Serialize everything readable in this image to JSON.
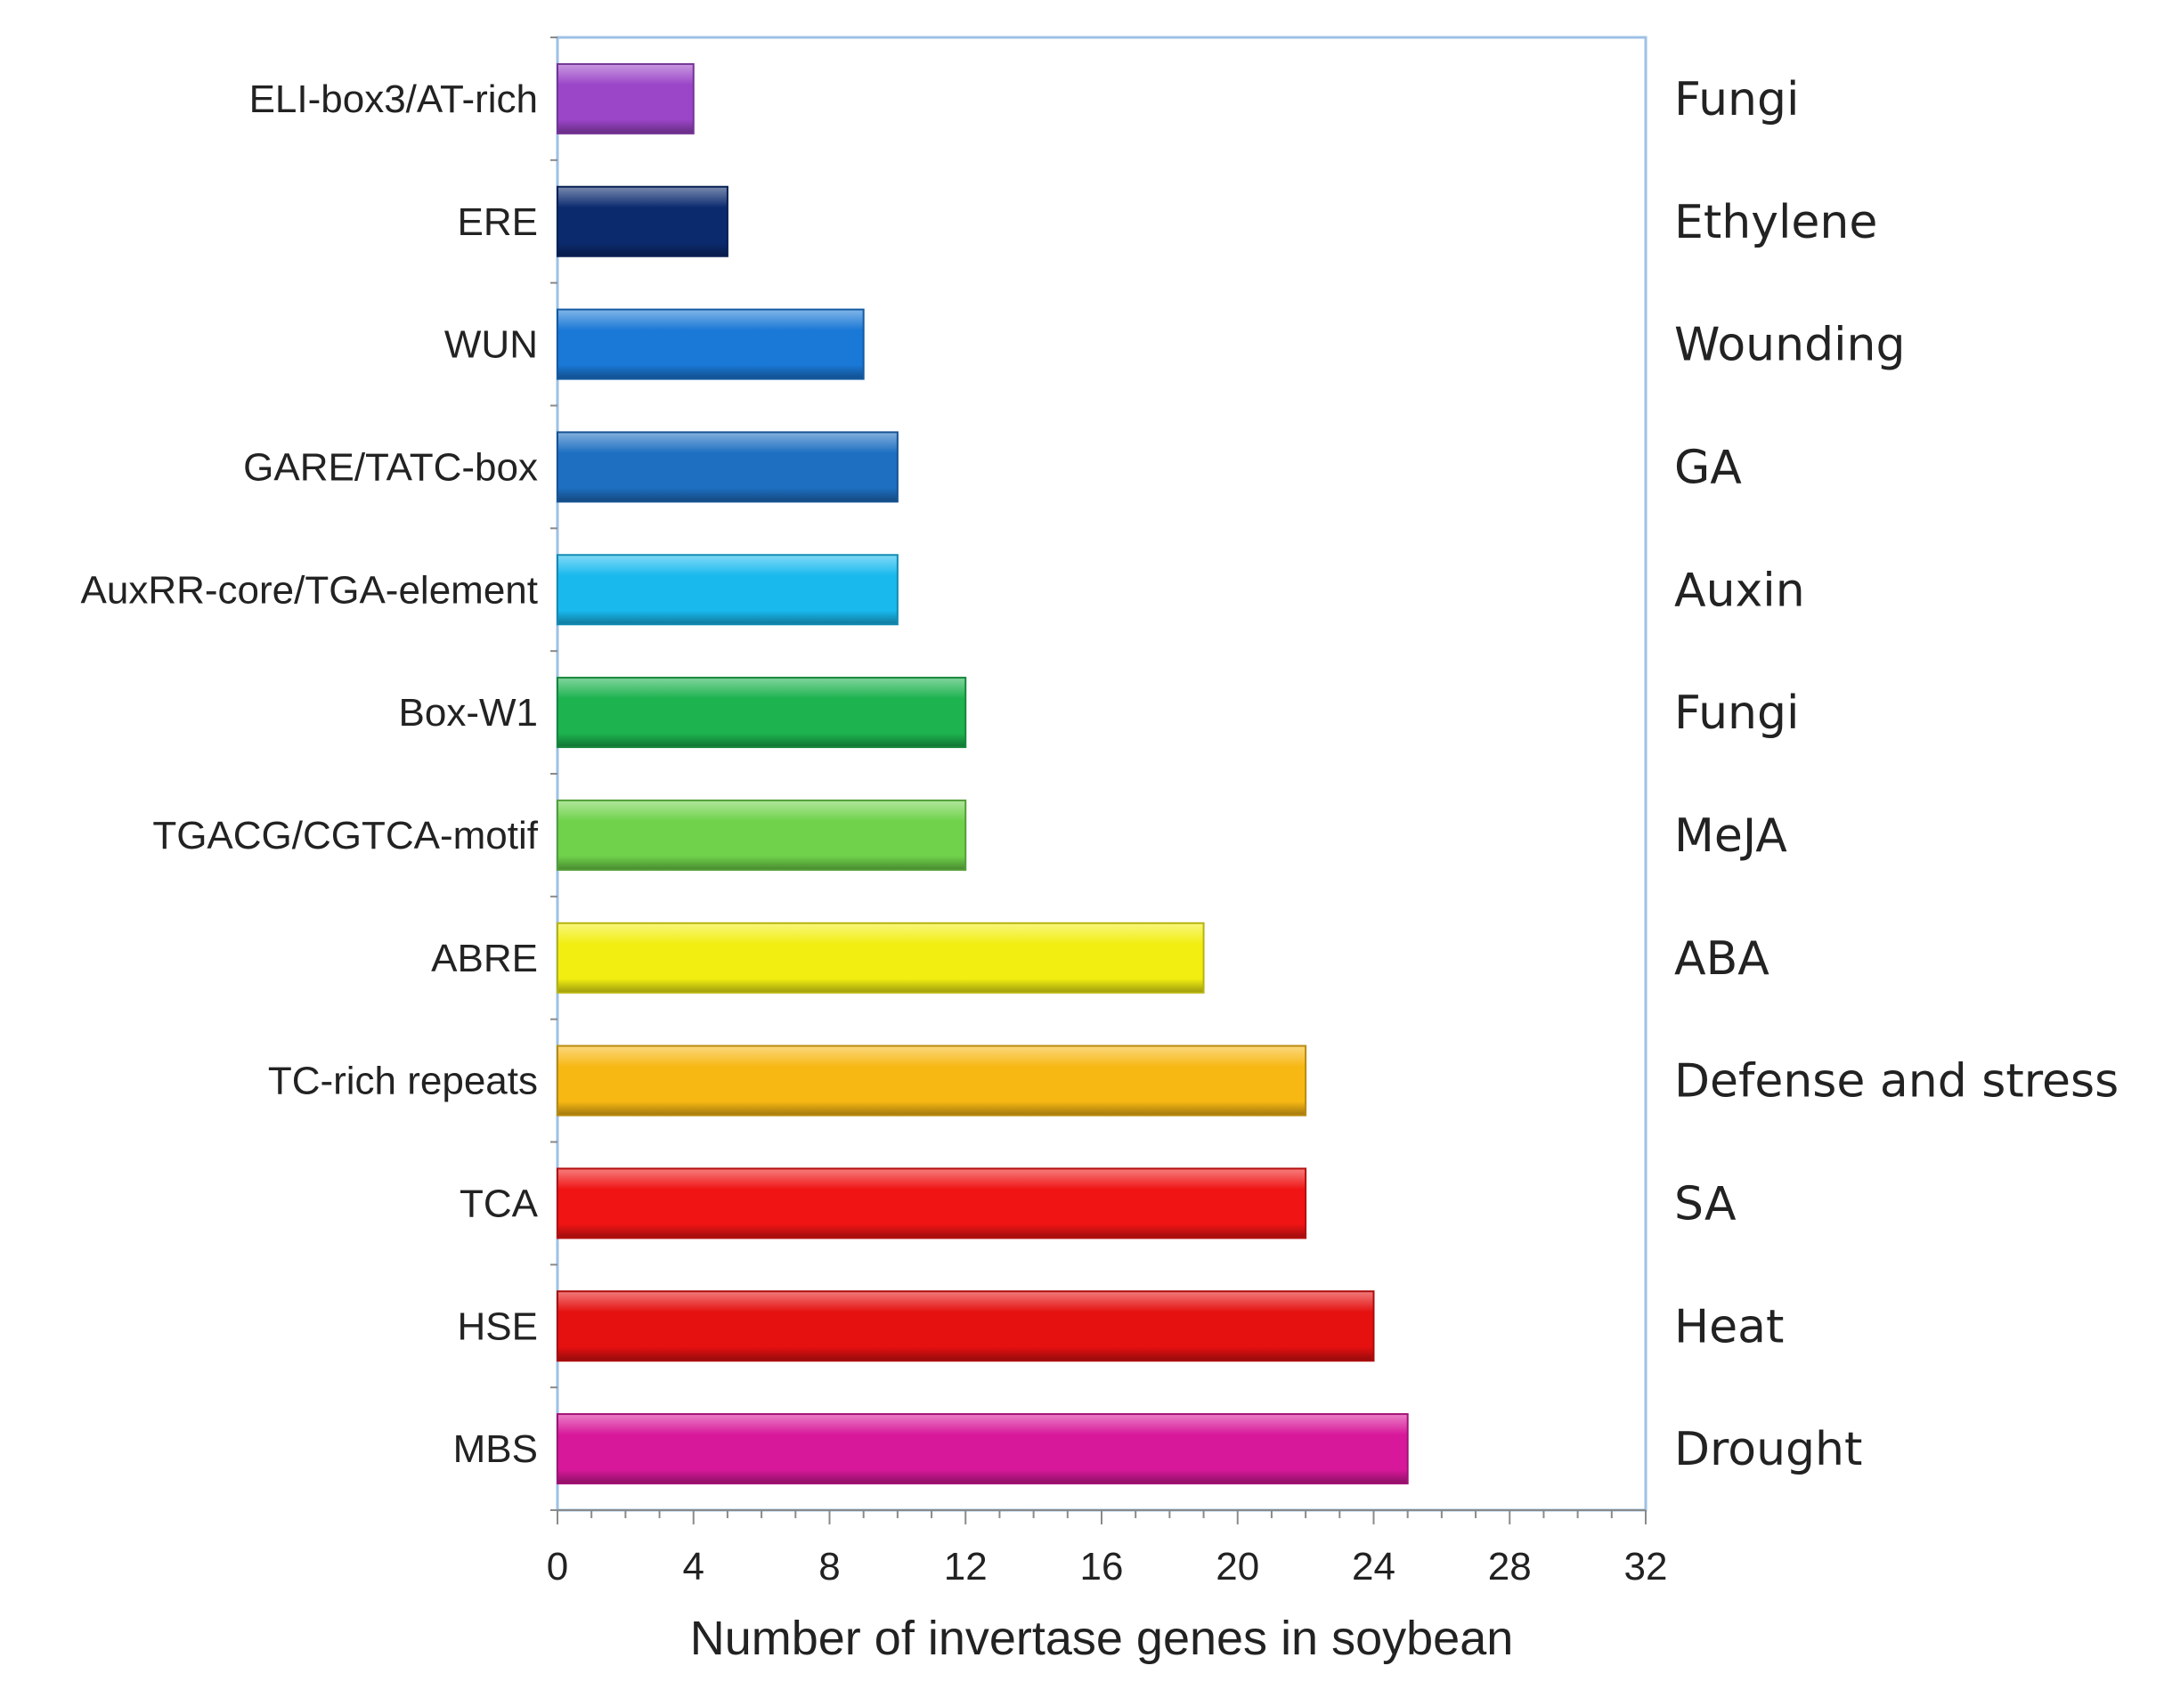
{
  "chart_data": {
    "type": "bar",
    "orientation": "horizontal",
    "title": "",
    "xlabel": "Number of invertase genes in soybean",
    "ylabel": "",
    "xlim": [
      0,
      32
    ],
    "xticks": [
      0,
      4,
      8,
      12,
      16,
      20,
      24,
      28,
      32
    ],
    "grid": false,
    "legend": "none",
    "categories": [
      "ELI-box3/AT-rich",
      "ERE",
      "WUN",
      "GARE/TATC-box",
      "AuxRR-core/TGA-element",
      "Box-W1",
      "TGACG/CGTCA-motif",
      "ABRE",
      "TC-rich repeats",
      "TCA",
      "HSE",
      "MBS"
    ],
    "values": [
      4,
      5,
      9,
      10,
      10,
      12,
      12,
      19,
      22,
      22,
      24,
      25
    ],
    "groups": [
      "Fungi",
      "Ethylene",
      "Wounding",
      "GA",
      "Auxin",
      "Fungi",
      "MeJA",
      "ABA",
      "Defense and stress",
      "SA",
      "Heat",
      "Drought"
    ],
    "colors": [
      "#9b45c8",
      "#0b2a6e",
      "#1a78d6",
      "#1e6fc2",
      "#19b9ee",
      "#1db34f",
      "#6fd24a",
      "#f2ee12",
      "#f7b814",
      "#f01414",
      "#e51010",
      "#d8189a"
    ],
    "axis_color": "#9ec1e6"
  }
}
